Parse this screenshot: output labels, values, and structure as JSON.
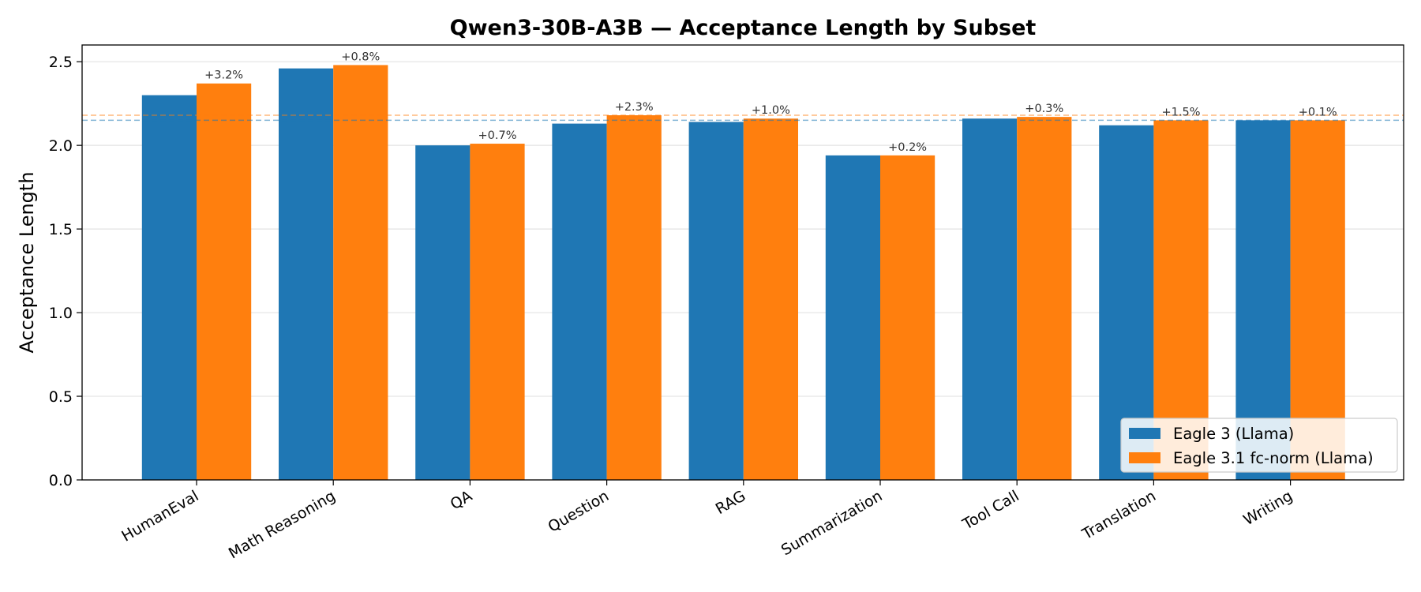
{
  "chart_data": {
    "type": "bar",
    "title": "Qwen3-30B-A3B — Acceptance Length by Subset",
    "xlabel": "",
    "ylabel": "Acceptance Length",
    "ylim": [
      0,
      2.6
    ],
    "yticks": [
      "0.0",
      "0.5",
      "1.0",
      "1.5",
      "2.0",
      "2.5"
    ],
    "grid": "horizontal",
    "legend_position": "lower-right",
    "categories": [
      "HumanEval",
      "Math Reasoning",
      "QA",
      "Question",
      "RAG",
      "Summarization",
      "Tool Call",
      "Translation",
      "Writing"
    ],
    "series": [
      {
        "name": "Eagle 3 (Llama)",
        "color": "#1f77b4",
        "values": [
          2.3,
          2.46,
          2.0,
          2.13,
          2.14,
          1.94,
          2.16,
          2.12,
          2.15
        ],
        "mean_line": 2.15
      },
      {
        "name": "Eagle 3.1 fc-norm (Llama)",
        "color": "#ff7f0e",
        "values": [
          2.37,
          2.48,
          2.01,
          2.18,
          2.16,
          1.94,
          2.17,
          2.15,
          2.15
        ],
        "mean_line": 2.18
      }
    ],
    "annotations": [
      "+3.2%",
      "+0.8%",
      "+0.7%",
      "+2.3%",
      "+1.0%",
      "+0.2%",
      "+0.3%",
      "+1.5%",
      "+0.1%"
    ]
  }
}
